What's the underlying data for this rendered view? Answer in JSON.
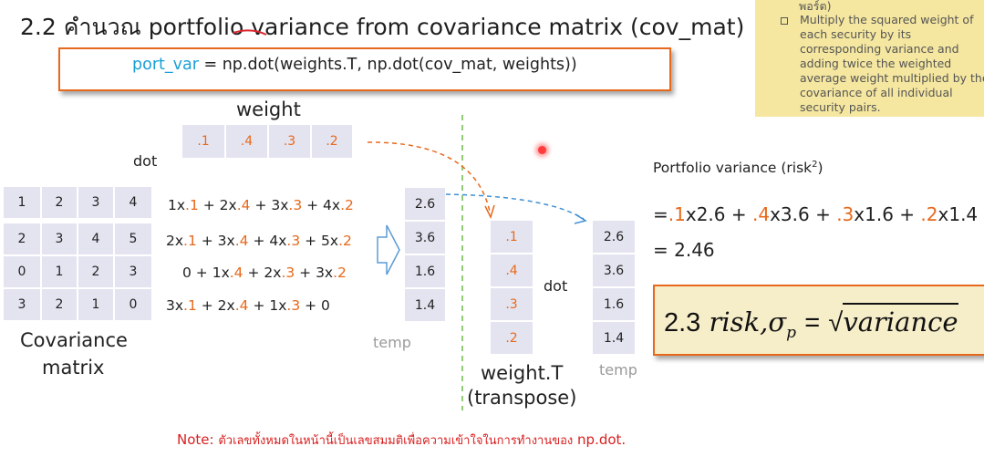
{
  "title": {
    "number": "2.2",
    "thai": "คำนวณ",
    "rest": "portfolio variance from covariance matrix (cov_mat)"
  },
  "code": {
    "lhs": "port_var",
    "rhs": "= np.dot(weights.T, np.dot(cov_mat, weights))"
  },
  "note_box": {
    "top_text": "พอร์ต)",
    "text": "Multiply the squared weight of each security by its corresponding variance and adding twice the weighted average weight multiplied by the covariance of all individual security pairs."
  },
  "weight_label": "weight",
  "weights": [
    ".1",
    ".4",
    ".3",
    ".2"
  ],
  "dot_label": "dot",
  "cov_matrix": [
    [
      "1",
      "2",
      "3",
      "4"
    ],
    [
      "2",
      "3",
      "4",
      "5"
    ],
    [
      "0",
      "1",
      "2",
      "3"
    ],
    [
      "3",
      "2",
      "1",
      "0"
    ]
  ],
  "cov_label": [
    "Covariance",
    "matrix"
  ],
  "expansions": [
    [
      [
        "1x",
        ""
      ],
      [
        ".1",
        "o"
      ],
      [
        " + 2x",
        ""
      ],
      [
        ".4",
        "o"
      ],
      [
        " + 3x",
        ""
      ],
      [
        ".3",
        "o"
      ],
      [
        " + 4x",
        ""
      ],
      [
        ".2",
        "o"
      ]
    ],
    [
      [
        "2x",
        ""
      ],
      [
        ".1",
        "o"
      ],
      [
        " + 3x",
        ""
      ],
      [
        ".4",
        "o"
      ],
      [
        " + 4x",
        ""
      ],
      [
        ".3",
        "o"
      ],
      [
        " + 5x",
        ""
      ],
      [
        ".2",
        "o"
      ]
    ],
    [
      [
        "0 + 1x",
        ""
      ],
      [
        ".4",
        "o"
      ],
      [
        " + 2x",
        ""
      ],
      [
        ".3",
        "o"
      ],
      [
        " + 3x",
        ""
      ],
      [
        ".2",
        "o"
      ]
    ],
    [
      [
        "3x",
        ""
      ],
      [
        ".1",
        "o"
      ],
      [
        " + 2x",
        ""
      ],
      [
        ".4",
        "o"
      ],
      [
        " + 1x",
        ""
      ],
      [
        ".3",
        "o"
      ],
      [
        " + 0",
        ""
      ]
    ]
  ],
  "temp_values": [
    "2.6",
    "3.6",
    "1.6",
    "1.4"
  ],
  "temp_label": "temp",
  "weight_t_label": [
    "weight.T",
    "(transpose)"
  ],
  "pv_label": "Portfolio variance (risk",
  "pv_sup": "2",
  "pv_close": ")",
  "pv_formula": [
    [
      "=",
      ""
    ],
    [
      ".1",
      "o"
    ],
    [
      "x2.6 + ",
      ""
    ],
    [
      ".4",
      "o"
    ],
    [
      "x3.6 + ",
      ""
    ],
    [
      ".3",
      "o"
    ],
    [
      "x1.6 + ",
      ""
    ],
    [
      ".2",
      "o"
    ],
    [
      "x1.4",
      ""
    ]
  ],
  "pv_result": "= 2.46",
  "risk": {
    "num": "2.3",
    "word": "risk,",
    "sigma": "σ",
    "sub": "p",
    "eq": "=",
    "radicand": "variance"
  },
  "bottom_note": {
    "label": "Note:",
    "text": "ตัวเลขทั้งหมดในหน้านี้เป็นเลขสมมติเพื่อความเข้าใจในการทำงานของ",
    "tail": "np.dot."
  },
  "colors": {
    "accent": "#e7691c",
    "cell": "#e4e4f1",
    "note_bg": "#f5e7a0",
    "keyword": "#1aa0d6",
    "note_red": "#d91f1f"
  }
}
